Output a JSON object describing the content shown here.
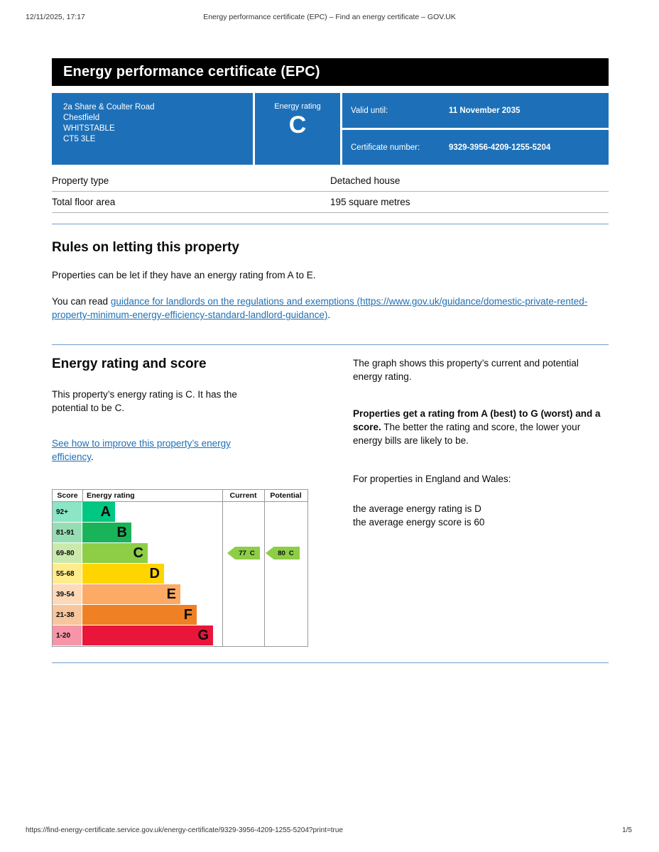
{
  "accent_colors": {
    "govuk_blue": "#1d70b8",
    "banner_black": "#000000",
    "link_blue": "#1d70b8"
  },
  "print_header": {
    "datetime": "12/11/2025, 17:17",
    "document_title": "Energy performance certificate (EPC) – Find an energy certificate – GOV.UK"
  },
  "banner": {
    "title": "Energy performance certificate (EPC)"
  },
  "summary": {
    "address_lines": [
      "2a Share & Coulter Road",
      "Chestfield",
      "WHITSTABLE",
      "CT5 3LE"
    ],
    "energy_rating_label": "Energy rating",
    "energy_rating_letter": "C",
    "valid_until_label": "Valid until:",
    "valid_until_value": "11 November 2035",
    "certificate_number_label": "Certificate number:",
    "certificate_number_value": "9329-3956-4209-1255-5204"
  },
  "property_details": {
    "rows": [
      {
        "label": "Property type",
        "value": "Detached house"
      },
      {
        "label": "Total floor area",
        "value": "195 square metres"
      }
    ]
  },
  "letting_rules": {
    "heading": "Rules on letting this property",
    "paragraph": "Properties can be let if they have an energy rating from A to E.",
    "read_prefix": "You can read ",
    "guidance_link_text": "guidance for landlords on the regulations and exemptions (https://www.gov.uk/guidance/domestic-private-rented-property-minimum-energy-efficiency-standard-landlord-guidance)",
    "read_suffix": "."
  },
  "rating_section": {
    "heading": "Energy rating and score",
    "intro": "This property’s energy rating is C. It has the potential to be C.",
    "improve_link_text": "See how to improve this property’s energy efficiency",
    "improve_suffix": ".",
    "graph_intro": "The graph shows this property’s current and potential energy rating.",
    "explain_bold": "Properties get a rating from A (best) to G (worst) and a score.",
    "explain_rest": " The better the rating and score, the lower your energy bills are likely to be.",
    "region_line": "For properties in England and Wales:",
    "average_rating_line": "the average energy rating is D",
    "average_score_line": "the average energy score is 60"
  },
  "chart_data": {
    "type": "bar",
    "title": "Energy rating and score",
    "column_headers": [
      "Score",
      "Energy rating",
      "Current",
      "Potential"
    ],
    "bands": [
      {
        "score_range": "92+",
        "letter": "A",
        "color": "#00c781",
        "tint": "#8ce6c6"
      },
      {
        "score_range": "81-91",
        "letter": "B",
        "color": "#19b459",
        "tint": "#97ddb4"
      },
      {
        "score_range": "69-80",
        "letter": "C",
        "color": "#8dce46",
        "tint": "#cbe9ac"
      },
      {
        "score_range": "55-68",
        "letter": "D",
        "color": "#ffd500",
        "tint": "#ffec8c"
      },
      {
        "score_range": "39-54",
        "letter": "E",
        "color": "#fcaa65",
        "tint": "#fed9b9"
      },
      {
        "score_range": "21-38",
        "letter": "F",
        "color": "#ef8023",
        "tint": "#f7c69c"
      },
      {
        "score_range": "1-20",
        "letter": "G",
        "color": "#e9153b",
        "tint": "#f595a7"
      }
    ],
    "current": {
      "score": 77,
      "band": "C"
    },
    "potential": {
      "score": 80,
      "band": "C"
    },
    "indicator_color": "#8dce46"
  },
  "print_footer": {
    "url": "https://find-energy-certificate.service.gov.uk/energy-certificate/9329-3956-4209-1255-5204?print=true",
    "page_indicator": "1/5"
  }
}
